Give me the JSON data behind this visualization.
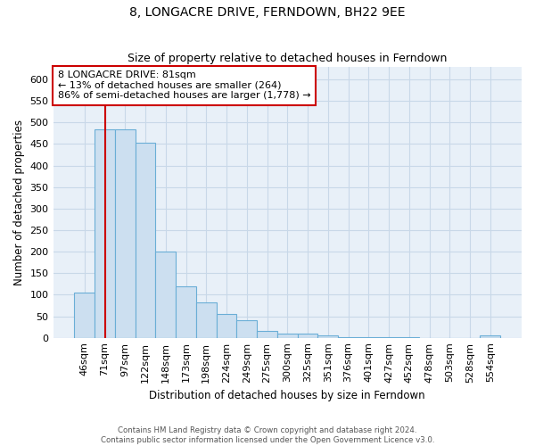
{
  "title": "8, LONGACRE DRIVE, FERNDOWN, BH22 9EE",
  "subtitle": "Size of property relative to detached houses in Ferndown",
  "xlabel": "Distribution of detached houses by size in Ferndown",
  "ylabel": "Number of detached properties",
  "categories": [
    "46sqm",
    "71sqm",
    "97sqm",
    "122sqm",
    "148sqm",
    "173sqm",
    "198sqm",
    "224sqm",
    "249sqm",
    "275sqm",
    "300sqm",
    "325sqm",
    "351sqm",
    "376sqm",
    "401sqm",
    "427sqm",
    "452sqm",
    "478sqm",
    "503sqm",
    "528sqm",
    "554sqm"
  ],
  "values": [
    105,
    485,
    485,
    452,
    200,
    120,
    82,
    55,
    40,
    15,
    10,
    10,
    5,
    2,
    2,
    2,
    1,
    0,
    0,
    0,
    5
  ],
  "bar_color": "#ccdff0",
  "bar_edge_color": "#6aaed6",
  "red_line_x": 1.0,
  "annotation_text": "8 LONGACRE DRIVE: 81sqm\n← 13% of detached houses are smaller (264)\n86% of semi-detached houses are larger (1,778) →",
  "annotation_box_color": "#ffffff",
  "annotation_box_edge_color": "#cc0000",
  "red_line_color": "#cc0000",
  "ylim": [
    0,
    630
  ],
  "yticks": [
    0,
    50,
    100,
    150,
    200,
    250,
    300,
    350,
    400,
    450,
    500,
    550,
    600
  ],
  "footer_line1": "Contains HM Land Registry data © Crown copyright and database right 2024.",
  "footer_line2": "Contains public sector information licensed under the Open Government Licence v3.0.",
  "grid_color": "#c8d8e8",
  "plot_bg_color": "#e8f0f8"
}
